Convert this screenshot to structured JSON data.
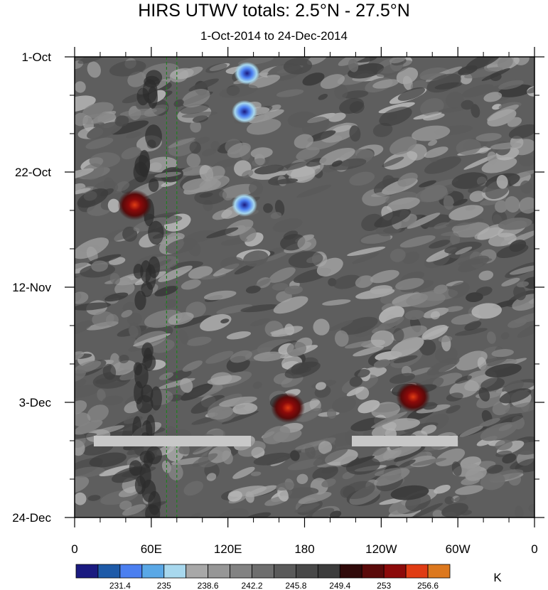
{
  "chart_data": {
    "type": "heatmap",
    "title": "HIRS UTWV totals: 2.5°N - 27.5°N",
    "subtitle": "1-Oct-2014 to 24-Dec-2014",
    "x_ticks": [
      "0",
      "60E",
      "120E",
      "180",
      "120W",
      "60W",
      "0"
    ],
    "x_tick_values": [
      0,
      60,
      120,
      180,
      240,
      300,
      360
    ],
    "xlim": [
      0,
      360
    ],
    "y_ticks": [
      "1-Oct",
      "22-Oct",
      "12-Nov",
      "3-Dec",
      "24-Dec"
    ],
    "y_tick_values": [
      "2014-10-01",
      "2014-10-22",
      "2014-11-12",
      "2014-12-03",
      "2014-12-24"
    ],
    "ylim": [
      "2014-10-01",
      "2014-12-24"
    ],
    "colorbar": {
      "unit": "K",
      "labels": [
        "231.4",
        "235",
        "238.6",
        "242.2",
        "245.8",
        "249.4",
        "253",
        "256.6"
      ],
      "colors": [
        "#1a1a80",
        "#1e5aa8",
        "#4b7ff0",
        "#5aa8e6",
        "#a8d8ee",
        "#a8a8a8",
        "#969696",
        "#828282",
        "#6e6e6e",
        "#5a5a5a",
        "#484848",
        "#3c3c3c",
        "#300a0a",
        "#5a0a0a",
        "#8c0a0a",
        "#e03c14",
        "#dc781e"
      ]
    },
    "features": [
      {
        "type": "dashed-line",
        "x": 72,
        "color": "#208020"
      },
      {
        "type": "dashed-line",
        "x": 80,
        "color": "#208020"
      },
      {
        "type": "missing-data-band",
        "date": "2014-12-10",
        "x_range": [
          15,
          138
        ],
        "color": "#c8c8c8"
      },
      {
        "type": "missing-data-band",
        "date": "2014-12-10",
        "x_range": [
          217,
          300
        ],
        "color": "#c8c8c8"
      },
      {
        "type": "cold-patch",
        "x": 135,
        "date": "2014-10-04",
        "level": 231.4
      },
      {
        "type": "cold-patch",
        "x": 133,
        "date": "2014-10-11",
        "level": 235
      },
      {
        "type": "cold-patch",
        "x": 133,
        "date": "2014-10-28",
        "level": 235
      },
      {
        "type": "warm-patch",
        "x": 167,
        "date": "2014-12-04",
        "level": 256.6
      },
      {
        "type": "warm-patch",
        "x": 47,
        "date": "2014-10-28",
        "level": 253
      },
      {
        "type": "warm-patch",
        "x": 265,
        "date": "2014-12-02",
        "level": 253
      }
    ]
  }
}
